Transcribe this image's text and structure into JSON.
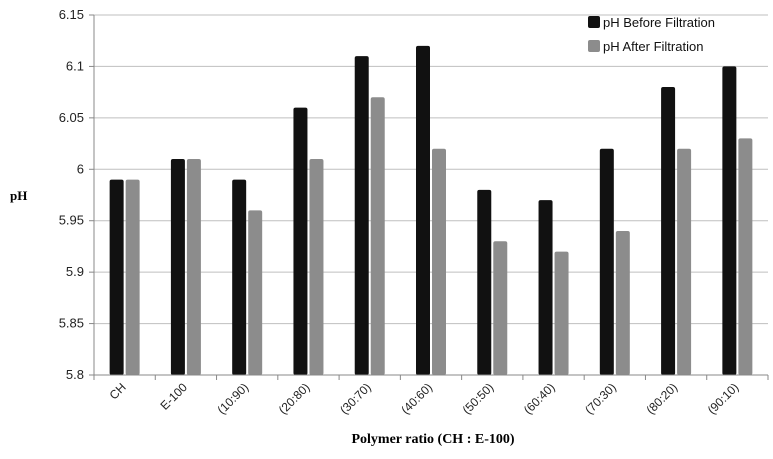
{
  "chart_data": {
    "type": "bar",
    "categories": [
      "CH",
      "E-100",
      "(10:90)",
      "(20:80)",
      "(30:70)",
      "(40:60)",
      "(50:50)",
      "(60:40)",
      "(70:30)",
      "(80:20)",
      "(90:10)"
    ],
    "series": [
      {
        "name": "pH Before Filtration",
        "color": "#111111",
        "values": [
          5.99,
          6.01,
          5.99,
          6.06,
          6.11,
          6.12,
          5.98,
          5.97,
          6.02,
          6.08,
          6.1
        ]
      },
      {
        "name": "pH After Filtration",
        "color": "#8c8c8c",
        "values": [
          5.99,
          6.01,
          5.96,
          6.01,
          6.07,
          6.02,
          5.93,
          5.92,
          5.94,
          6.02,
          6.03
        ]
      }
    ],
    "xlabel": "Polymer ratio (CH : E-100)",
    "ylabel": "pH",
    "ylim": [
      5.8,
      6.15
    ],
    "yticks": [
      "5.8",
      "5.85",
      "5.9",
      "5.95",
      "6",
      "6.05",
      "6.1",
      "6.15"
    ],
    "grid": true,
    "legend_position": "top-right"
  }
}
